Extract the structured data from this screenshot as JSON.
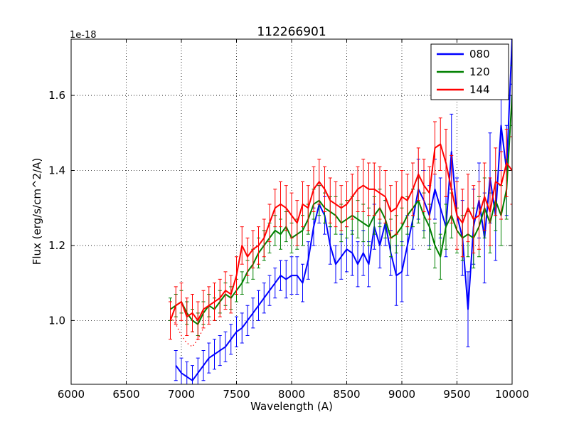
{
  "figure": {
    "background": "#ffffff"
  },
  "chart_data": {
    "type": "line",
    "title": "112266901",
    "xlabel": "Wavelength (A)",
    "ylabel": "Flux (erg/s/cm^2/A)",
    "y_offset_text": "1e-18",
    "xlim": [
      6000,
      10000
    ],
    "ylim": [
      0.83,
      1.75
    ],
    "xticks": [
      6000,
      6500,
      7000,
      7500,
      8000,
      8500,
      9000,
      9500,
      10000
    ],
    "xtick_labels": [
      "6000",
      "6500",
      "7000",
      "7500",
      "8000",
      "8500",
      "9000",
      "9500",
      "10000"
    ],
    "yticks": [
      1.0,
      1.2,
      1.4,
      1.6
    ],
    "ytick_labels": [
      "1.0",
      "1.2",
      "1.4",
      "1.6"
    ],
    "grid": "dotted",
    "grid_color": "#000000",
    "legend_position": "upper right",
    "series": [
      {
        "name": "080",
        "color": "#0000ff",
        "x_start": 6950,
        "x_step": 50,
        "y": [
          0.88,
          0.86,
          0.85,
          0.84,
          0.86,
          0.88,
          0.9,
          0.91,
          0.92,
          0.93,
          0.95,
          0.97,
          0.98,
          1.0,
          1.02,
          1.04,
          1.06,
          1.08,
          1.1,
          1.12,
          1.11,
          1.12,
          1.12,
          1.1,
          1.16,
          1.25,
          1.31,
          1.28,
          1.2,
          1.15,
          1.17,
          1.19,
          1.18,
          1.15,
          1.18,
          1.15,
          1.25,
          1.2,
          1.26,
          1.18,
          1.12,
          1.13,
          1.2,
          1.27,
          1.35,
          1.32,
          1.28,
          1.35,
          1.3,
          1.25,
          1.45,
          1.28,
          1.22,
          1.03,
          1.25,
          1.32,
          1.22,
          1.38,
          1.28,
          1.52,
          1.4,
          1.75
        ],
        "yerr": [
          0.04,
          0.04,
          0.04,
          0.04,
          0.04,
          0.04,
          0.04,
          0.04,
          0.04,
          0.04,
          0.04,
          0.04,
          0.04,
          0.04,
          0.04,
          0.04,
          0.04,
          0.04,
          0.04,
          0.04,
          0.05,
          0.05,
          0.05,
          0.05,
          0.05,
          0.05,
          0.05,
          0.05,
          0.05,
          0.05,
          0.06,
          0.06,
          0.06,
          0.06,
          0.06,
          0.06,
          0.06,
          0.06,
          0.06,
          0.06,
          0.08,
          0.08,
          0.08,
          0.08,
          0.08,
          0.08,
          0.08,
          0.08,
          0.08,
          0.08,
          0.1,
          0.1,
          0.1,
          0.1,
          0.1,
          0.1,
          0.12,
          0.12,
          0.12,
          0.12,
          0.12,
          0.12
        ]
      },
      {
        "name": "120",
        "color": "#008000",
        "x_start": 6900,
        "x_step": 50,
        "y": [
          1.03,
          1.04,
          1.05,
          1.02,
          1.0,
          0.99,
          1.02,
          1.04,
          1.03,
          1.05,
          1.07,
          1.06,
          1.08,
          1.1,
          1.13,
          1.15,
          1.18,
          1.2,
          1.22,
          1.24,
          1.23,
          1.25,
          1.22,
          1.23,
          1.24,
          1.27,
          1.31,
          1.32,
          1.3,
          1.29,
          1.28,
          1.26,
          1.27,
          1.28,
          1.27,
          1.26,
          1.25,
          1.28,
          1.3,
          1.27,
          1.22,
          1.23,
          1.25,
          1.28,
          1.3,
          1.32,
          1.28,
          1.25,
          1.2,
          1.17,
          1.25,
          1.28,
          1.24,
          1.22,
          1.23,
          1.22,
          1.25,
          1.3,
          1.26,
          1.32,
          1.28,
          1.35,
          1.6
        ],
        "yerr": [
          0.03,
          0.03,
          0.03,
          0.03,
          0.03,
          0.03,
          0.03,
          0.03,
          0.03,
          0.03,
          0.03,
          0.03,
          0.03,
          0.03,
          0.03,
          0.04,
          0.04,
          0.04,
          0.04,
          0.04,
          0.04,
          0.04,
          0.04,
          0.04,
          0.04,
          0.04,
          0.04,
          0.04,
          0.04,
          0.04,
          0.05,
          0.05,
          0.05,
          0.05,
          0.05,
          0.05,
          0.05,
          0.05,
          0.05,
          0.05,
          0.05,
          0.05,
          0.05,
          0.05,
          0.05,
          0.06,
          0.06,
          0.06,
          0.06,
          0.06,
          0.06,
          0.06,
          0.06,
          0.06,
          0.06,
          0.08,
          0.08,
          0.08,
          0.08,
          0.08,
          0.08,
          0.08,
          0.08
        ]
      },
      {
        "name": "144",
        "color": "#ff0000",
        "x_start": 6900,
        "x_step": 50,
        "y": [
          1.0,
          1.04,
          1.05,
          1.01,
          1.02,
          1.0,
          1.03,
          1.04,
          1.05,
          1.06,
          1.08,
          1.07,
          1.12,
          1.2,
          1.17,
          1.19,
          1.2,
          1.22,
          1.26,
          1.3,
          1.31,
          1.3,
          1.28,
          1.26,
          1.31,
          1.3,
          1.35,
          1.37,
          1.35,
          1.32,
          1.31,
          1.3,
          1.31,
          1.33,
          1.35,
          1.36,
          1.35,
          1.35,
          1.34,
          1.33,
          1.29,
          1.3,
          1.33,
          1.32,
          1.35,
          1.39,
          1.36,
          1.34,
          1.46,
          1.47,
          1.42,
          1.35,
          1.28,
          1.26,
          1.3,
          1.27,
          1.28,
          1.33,
          1.29,
          1.37,
          1.36,
          1.42,
          1.4
        ],
        "yerr": [
          0.05,
          0.05,
          0.05,
          0.05,
          0.05,
          0.05,
          0.05,
          0.05,
          0.05,
          0.05,
          0.05,
          0.05,
          0.05,
          0.05,
          0.05,
          0.05,
          0.05,
          0.05,
          0.05,
          0.05,
          0.06,
          0.06,
          0.06,
          0.06,
          0.06,
          0.06,
          0.06,
          0.06,
          0.06,
          0.06,
          0.06,
          0.06,
          0.06,
          0.06,
          0.06,
          0.07,
          0.07,
          0.07,
          0.07,
          0.07,
          0.07,
          0.07,
          0.07,
          0.07,
          0.07,
          0.07,
          0.07,
          0.07,
          0.07,
          0.07,
          0.09,
          0.09,
          0.09,
          0.09,
          0.09,
          0.09,
          0.09,
          0.09,
          0.09,
          0.09,
          0.09,
          0.09,
          0.09
        ]
      }
    ],
    "extra_segments": [
      {
        "name": "144-dotted",
        "color": "#ff0000",
        "style": "dotted",
        "x_start": 6900,
        "x_step": 50,
        "y": [
          1.01,
          0.99,
          0.96,
          0.94,
          0.93,
          0.95,
          0.98
        ]
      }
    ],
    "legend": {
      "labels": [
        "080",
        "120",
        "144"
      ]
    }
  }
}
